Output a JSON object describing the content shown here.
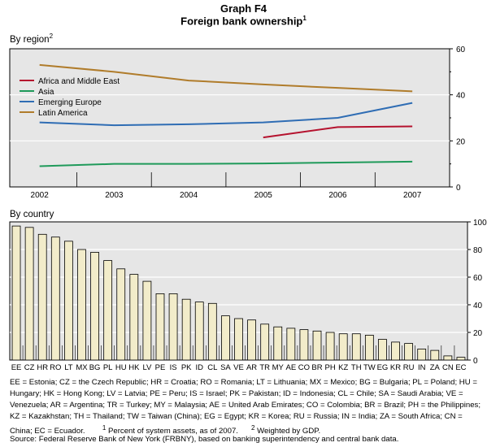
{
  "header": {
    "title": "Graph F4",
    "subtitle": "Foreign bank ownership",
    "subtitle_sup": "1"
  },
  "panels": {
    "region_label": "By region",
    "region_sup": "2",
    "country_label": "By country"
  },
  "chart_data": [
    {
      "type": "line",
      "title": "By region",
      "x": [
        "2002",
        "2003",
        "2004",
        "2005",
        "2006",
        "2007"
      ],
      "ylim": [
        0,
        60
      ],
      "yticks": [
        0,
        20,
        40,
        60
      ],
      "y_axis_side": "right",
      "legend_position": "top-left",
      "series": [
        {
          "name": "Africa and Middle East",
          "color": "#b5122e",
          "points": [
            [
              2005,
              21.5
            ],
            [
              2006,
              26
            ],
            [
              2007,
              26.3
            ]
          ]
        },
        {
          "name": "Asia",
          "color": "#1f9a5a",
          "points": [
            [
              2002,
              9
            ],
            [
              2003,
              10
            ],
            [
              2004,
              10
            ],
            [
              2005,
              10.2
            ],
            [
              2006,
              10.6
            ],
            [
              2007,
              11
            ]
          ]
        },
        {
          "name": "Emerging Europe",
          "color": "#2f6db4",
          "points": [
            [
              2002,
              28
            ],
            [
              2003,
              26.8
            ],
            [
              2004,
              27.2
            ],
            [
              2005,
              28
            ],
            [
              2006,
              30
            ],
            [
              2007,
              36.5
            ]
          ]
        },
        {
          "name": "Latin America",
          "color": "#b07c2b",
          "points": [
            [
              2002,
              53
            ],
            [
              2003,
              50
            ],
            [
              2004,
              46.2
            ],
            [
              2005,
              44.5
            ],
            [
              2006,
              43
            ],
            [
              2007,
              41.5
            ]
          ]
        }
      ]
    },
    {
      "type": "bar",
      "title": "By country",
      "categories": [
        "EE",
        "CZ",
        "HR",
        "RO",
        "LT",
        "MX",
        "BG",
        "PL",
        "HU",
        "HK",
        "LV",
        "PE",
        "IS",
        "PK",
        "ID",
        "CL",
        "SA",
        "VE",
        "AR",
        "TR",
        "MY",
        "AE",
        "CO",
        "BR",
        "PH",
        "KZ",
        "TH",
        "TW",
        "EG",
        "KR",
        "RU",
        "IN",
        "ZA",
        "CN",
        "EC"
      ],
      "values": [
        97,
        96,
        91,
        89,
        86,
        80,
        78,
        72,
        66,
        62,
        57,
        48,
        48,
        44,
        42,
        41,
        32,
        30,
        29,
        26,
        24,
        23,
        22,
        21,
        20,
        19,
        19,
        18,
        15,
        13,
        12,
        8,
        7,
        3,
        2
      ],
      "ylim": [
        0,
        100
      ],
      "yticks": [
        0,
        20,
        40,
        60,
        80,
        100
      ],
      "y_axis_side": "right",
      "bar_color": "#f2ecca"
    }
  ],
  "footnotes": {
    "abbreviations": "EE = Estonia; CZ = the Czech Republic; HR = Croatia; RO = Romania; LT = Lithuania; MX = Mexico; BG = Bulgaria; PL = Poland; HU = Hungary; HK = Hong Kong; LV = Latvia; PE = Peru; IS = Israel; PK = Pakistan; ID = Indonesia; CL = Chile; SA = Saudi Arabia; VE = Venezuela; AR = Argentina; TR = Turkey; MY = Malaysia; AE = United Arab Emirates; CO = Colombia; BR = Brazil; PH = the Philippines; KZ = Kazakhstan; TH = Thailand; TW = Taiwan (China); EG = Egypt; KR = Korea; RU = Russia; IN = India; ZA = South Africa; CN = China; EC = Ecuador.",
    "note1_marker": "1",
    "note1": "Percent of system assets, as of 2007.",
    "note2_marker": "2",
    "note2": "Weighted by GDP.",
    "source": "Source: Federal Reserve Bank of New York (FRBNY), based on banking superintendency and central bank data."
  }
}
